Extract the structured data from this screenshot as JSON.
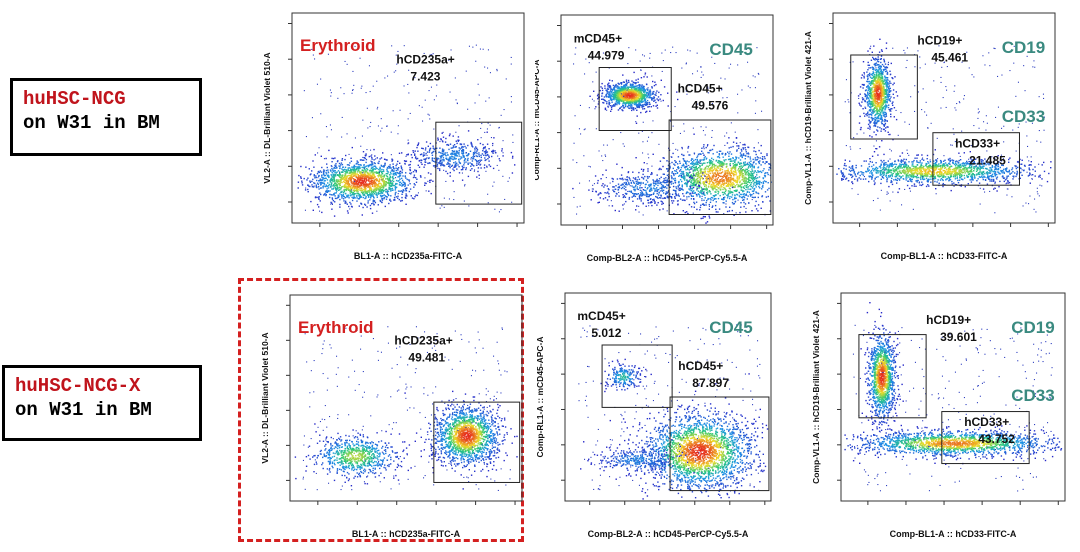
{
  "row_labels": [
    {
      "strain": "huHSC-NCG",
      "condition": "on W31 in BM"
    },
    {
      "strain": "huHSC-NCG-X",
      "condition": "on W31 in BM"
    }
  ],
  "colors": {
    "title_red": "#d42020",
    "title_teal": "#3a8a80",
    "highlight_dash": "#d42020"
  },
  "chart_data": [
    {
      "type": "scatter",
      "plot": "erythroid",
      "row": 0,
      "title": "Erythroid",
      "xlabel": "BL1-A :: hCD235a-FITC-A",
      "ylabel": "VL2-A :: DL-Brilliant Violet 510-A",
      "gates": [
        {
          "name": "hCD235a+",
          "value": "7.423"
        }
      ]
    },
    {
      "type": "scatter",
      "plot": "cd45",
      "row": 0,
      "title": "CD45",
      "xlabel": "Comp-BL2-A :: hCD45-PerCP-Cy5.5-A",
      "ylabel": "Comp-RL1-A :: mCD45-APC-A",
      "gates": [
        {
          "name": "mCD45+",
          "value": "44.979"
        },
        {
          "name": "hCD45+",
          "value": "49.576"
        }
      ]
    },
    {
      "type": "scatter",
      "plot": "cd19cd33",
      "row": 0,
      "title": "CD19",
      "title2": "CD33",
      "xlabel": "Comp-BL1-A :: hCD33-FITC-A",
      "ylabel": "Comp-VL1-A :: hCD19-Brilliant Violet 421-A",
      "gates": [
        {
          "name": "hCD19+",
          "value": "45.461"
        },
        {
          "name": "hCD33+",
          "value": "21.485"
        }
      ]
    },
    {
      "type": "scatter",
      "plot": "erythroid",
      "row": 1,
      "title": "Erythroid",
      "xlabel": "BL1-A :: hCD235a-FITC-A",
      "ylabel": "VL2-A :: DL-Brilliant Violet 510-A",
      "gates": [
        {
          "name": "hCD235a+",
          "value": "49.481"
        }
      ]
    },
    {
      "type": "scatter",
      "plot": "cd45",
      "row": 1,
      "title": "CD45",
      "xlabel": "Comp-BL2-A :: hCD45-PerCP-Cy5.5-A",
      "ylabel": "Comp-RL1-A :: mCD45-APC-A",
      "gates": [
        {
          "name": "mCD45+",
          "value": "5.012"
        },
        {
          "name": "hCD45+",
          "value": "87.897"
        }
      ]
    },
    {
      "type": "scatter",
      "plot": "cd19cd33",
      "row": 1,
      "title": "CD19",
      "title2": "CD33",
      "xlabel": "Comp-BL1-A :: hCD33-FITC-A",
      "ylabel": "Comp-VL1-A :: hCD19-Brilliant Violet 421-A",
      "gates": [
        {
          "name": "hCD19+",
          "value": "39.601"
        },
        {
          "name": "hCD33+",
          "value": "43.752"
        }
      ]
    }
  ]
}
